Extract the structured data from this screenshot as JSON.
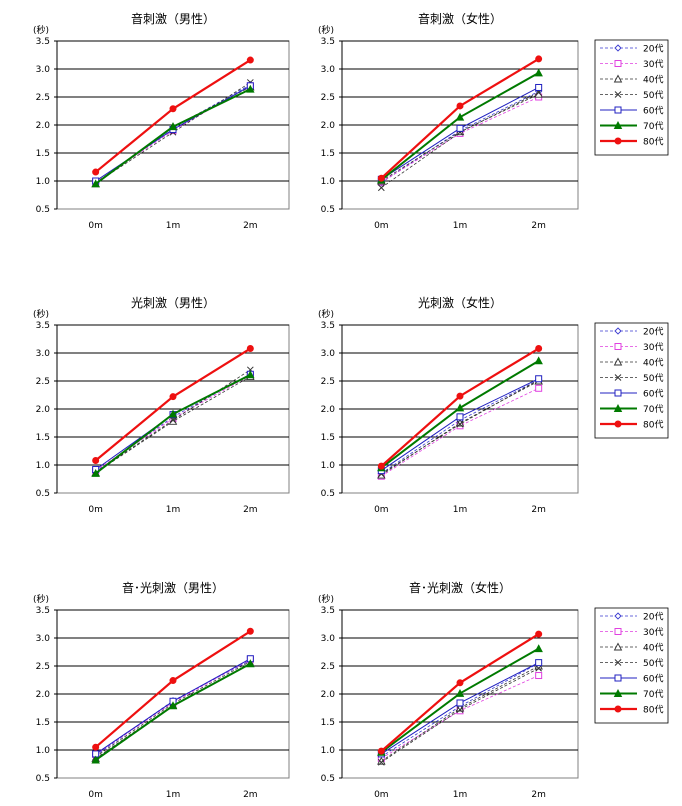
{
  "series_styles": [
    {
      "name": "20代",
      "color": "#3a3ad0",
      "marker": "diamond",
      "dash": "3,2",
      "width": 0.8
    },
    {
      "name": "30代",
      "color": "#e040e0",
      "marker": "square",
      "dash": "3,2",
      "width": 0.8
    },
    {
      "name": "40代",
      "color": "#333333",
      "marker": "triangle",
      "dash": "3,2",
      "width": 0.8
    },
    {
      "name": "50代",
      "color": "#333333",
      "marker": "cross",
      "dash": "3,2",
      "width": 0.8
    },
    {
      "name": "60代",
      "color": "#2020c0",
      "marker": "square",
      "dash": "",
      "width": 1.0
    },
    {
      "name": "70代",
      "color": "#007a00",
      "marker": "triangle",
      "dash": "",
      "width": 2.0
    },
    {
      "name": "80代",
      "color": "#ee1010",
      "marker": "circle",
      "dash": "",
      "width": 2.2
    }
  ],
  "chart_data": [
    {
      "type": "line",
      "title": "音刺激（男性）",
      "ylabel": "(秒)",
      "categories": [
        "0m",
        "1m",
        "2m"
      ],
      "ylim": [
        0.5,
        3.5
      ],
      "yticks": [
        "0.5",
        "1.0",
        "1.5",
        "2.0",
        "2.5",
        "3.0",
        "3.5"
      ],
      "grid": true,
      "legend": "none",
      "series": [
        {
          "name": "20代",
          "values": [
            0.97,
            1.95,
            2.72
          ]
        },
        {
          "name": "30代",
          "values": [
            0.98,
            1.9,
            2.7
          ]
        },
        {
          "name": "40代",
          "values": [
            0.95,
            1.97,
            2.68
          ]
        },
        {
          "name": "50代",
          "values": [
            0.96,
            1.87,
            2.76
          ]
        },
        {
          "name": "60代",
          "values": [
            1.0,
            1.92,
            2.7
          ]
        },
        {
          "name": "70代",
          "values": [
            0.95,
            1.97,
            2.64
          ]
        },
        {
          "name": "80代",
          "values": [
            1.16,
            2.29,
            3.16
          ]
        }
      ]
    },
    {
      "type": "line",
      "title": "音刺激（女性）",
      "ylabel": "(秒)",
      "categories": [
        "0m",
        "1m",
        "2m"
      ],
      "ylim": [
        0.5,
        3.5
      ],
      "yticks": [
        "0.5",
        "1.0",
        "1.5",
        "2.0",
        "2.5",
        "3.0",
        "3.5"
      ],
      "grid": true,
      "legend": "right",
      "series": [
        {
          "name": "20代",
          "values": [
            0.97,
            1.9,
            2.6
          ]
        },
        {
          "name": "30代",
          "values": [
            0.98,
            1.85,
            2.5
          ]
        },
        {
          "name": "40代",
          "values": [
            1.0,
            1.88,
            2.55
          ]
        },
        {
          "name": "50代",
          "values": [
            0.88,
            1.87,
            2.58
          ]
        },
        {
          "name": "60代",
          "values": [
            1.03,
            1.94,
            2.67
          ]
        },
        {
          "name": "70代",
          "values": [
            1.02,
            2.14,
            2.93
          ]
        },
        {
          "name": "80代",
          "values": [
            1.05,
            2.34,
            3.18
          ]
        }
      ]
    },
    {
      "type": "line",
      "title": "光刺激（男性）",
      "ylabel": "(秒)",
      "categories": [
        "0m",
        "1m",
        "2m"
      ],
      "ylim": [
        0.5,
        3.5
      ],
      "yticks": [
        "0.5",
        "1.0",
        "1.5",
        "2.0",
        "2.5",
        "3.0",
        "3.5"
      ],
      "grid": true,
      "legend": "none",
      "series": [
        {
          "name": "20代",
          "values": [
            0.88,
            1.86,
            2.62
          ]
        },
        {
          "name": "30代",
          "values": [
            0.9,
            1.83,
            2.6
          ]
        },
        {
          "name": "40代",
          "values": [
            0.86,
            1.78,
            2.58
          ]
        },
        {
          "name": "50代",
          "values": [
            0.87,
            1.8,
            2.7
          ]
        },
        {
          "name": "60代",
          "values": [
            0.92,
            1.9,
            2.62
          ]
        },
        {
          "name": "70代",
          "values": [
            0.85,
            1.91,
            2.61
          ]
        },
        {
          "name": "80代",
          "values": [
            1.08,
            2.22,
            3.08
          ]
        }
      ]
    },
    {
      "type": "line",
      "title": "光刺激（女性）",
      "ylabel": "(秒)",
      "categories": [
        "0m",
        "1m",
        "2m"
      ],
      "ylim": [
        0.5,
        3.5
      ],
      "yticks": [
        "0.5",
        "1.0",
        "1.5",
        "2.0",
        "2.5",
        "3.0",
        "3.5"
      ],
      "grid": true,
      "legend": "right",
      "series": [
        {
          "name": "20代",
          "values": [
            0.85,
            1.8,
            2.52
          ]
        },
        {
          "name": "30代",
          "values": [
            0.8,
            1.7,
            2.37
          ]
        },
        {
          "name": "40代",
          "values": [
            0.82,
            1.75,
            2.5
          ]
        },
        {
          "name": "50代",
          "values": [
            0.84,
            1.73,
            2.52
          ]
        },
        {
          "name": "60代",
          "values": [
            0.9,
            1.86,
            2.54
          ]
        },
        {
          "name": "70代",
          "values": [
            0.95,
            2.02,
            2.86
          ]
        },
        {
          "name": "80代",
          "values": [
            0.98,
            2.23,
            3.08
          ]
        }
      ]
    },
    {
      "type": "line",
      "title": "音･光刺激（男性）",
      "ylabel": "(秒)",
      "categories": [
        "0m",
        "1m",
        "2m"
      ],
      "ylim": [
        0.5,
        3.5
      ],
      "yticks": [
        "0.5",
        "1.0",
        "1.5",
        "2.0",
        "2.5",
        "3.0",
        "3.5"
      ],
      "grid": true,
      "legend": "none",
      "series": [
        {
          "name": "20代",
          "values": [
            0.9,
            1.88,
            2.6
          ]
        },
        {
          "name": "30代",
          "values": [
            0.92,
            1.85,
            2.62
          ]
        },
        {
          "name": "40代",
          "values": [
            0.85,
            1.8,
            2.55
          ]
        },
        {
          "name": "50代",
          "values": [
            0.88,
            1.83,
            2.58
          ]
        },
        {
          "name": "60代",
          "values": [
            0.93,
            1.87,
            2.63
          ]
        },
        {
          "name": "70代",
          "values": [
            0.82,
            1.79,
            2.54
          ]
        },
        {
          "name": "80代",
          "values": [
            1.05,
            2.24,
            3.12
          ]
        }
      ]
    },
    {
      "type": "line",
      "title": "音･光刺激（女性）",
      "ylabel": "(秒)",
      "categories": [
        "0m",
        "1m",
        "2m"
      ],
      "ylim": [
        0.5,
        3.5
      ],
      "yticks": [
        "0.5",
        "1.0",
        "1.5",
        "2.0",
        "2.5",
        "3.0",
        "3.5"
      ],
      "grid": true,
      "legend": "right",
      "series": [
        {
          "name": "20代",
          "values": [
            0.88,
            1.78,
            2.55
          ]
        },
        {
          "name": "30代",
          "values": [
            0.85,
            1.7,
            2.33
          ]
        },
        {
          "name": "40代",
          "values": [
            0.8,
            1.75,
            2.5
          ]
        },
        {
          "name": "50代",
          "values": [
            0.78,
            1.72,
            2.46
          ]
        },
        {
          "name": "60代",
          "values": [
            0.93,
            1.84,
            2.56
          ]
        },
        {
          "name": "70代",
          "values": [
            0.96,
            2.01,
            2.81
          ]
        },
        {
          "name": "80代",
          "values": [
            0.98,
            2.2,
            3.07
          ]
        }
      ]
    }
  ]
}
